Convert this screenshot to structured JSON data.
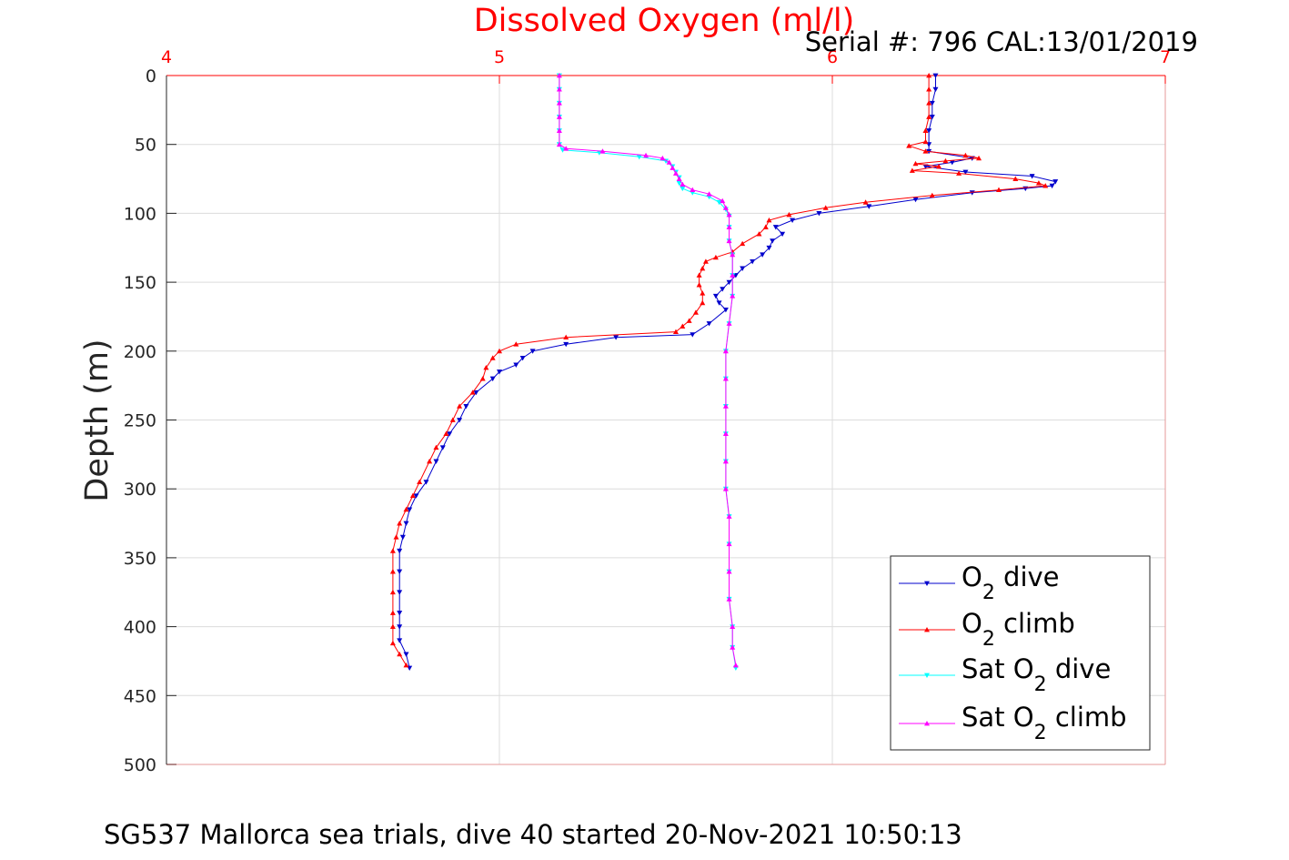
{
  "chart_data": {
    "type": "line",
    "title": "Dissolved Oxygen (ml/l)",
    "subtitle": "Serial #: 796  CAL:13/01/2019",
    "ylabel": "Depth (m)",
    "footer": "SG537 Mallorca sea trials, dive 40 started 20-Nov-2021 10:50:13",
    "xlim": [
      4,
      7
    ],
    "ylim": [
      0,
      500
    ],
    "y_reversed": true,
    "x_axis_position": "top",
    "x_ticks": [
      "4",
      "5",
      "6",
      "7"
    ],
    "y_ticks": [
      "0",
      "50",
      "100",
      "150",
      "200",
      "250",
      "300",
      "350",
      "400",
      "450",
      "500"
    ],
    "grid": true,
    "legend_position": "bottom-right",
    "colors": {
      "x_axis": "#ff0000",
      "title": "#ff0000"
    },
    "series": [
      {
        "name": "O2 dive",
        "name_main": "O",
        "name_sub": "2",
        "name_rest": " dive",
        "prefix": "",
        "color": "#0000cd",
        "marker": "triangle-down",
        "points": [
          [
            6.31,
            0
          ],
          [
            6.31,
            10
          ],
          [
            6.3,
            20
          ],
          [
            6.3,
            30
          ],
          [
            6.29,
            40
          ],
          [
            6.29,
            50
          ],
          [
            6.29,
            55
          ],
          [
            6.42,
            60
          ],
          [
            6.36,
            63
          ],
          [
            6.28,
            66
          ],
          [
            6.4,
            70
          ],
          [
            6.6,
            73
          ],
          [
            6.67,
            77
          ],
          [
            6.66,
            80
          ],
          [
            6.58,
            82
          ],
          [
            6.42,
            85
          ],
          [
            6.25,
            90
          ],
          [
            6.11,
            95
          ],
          [
            5.96,
            100
          ],
          [
            5.88,
            105
          ],
          [
            5.83,
            110
          ],
          [
            5.85,
            115
          ],
          [
            5.82,
            120
          ],
          [
            5.81,
            125
          ],
          [
            5.79,
            130
          ],
          [
            5.76,
            135
          ],
          [
            5.73,
            140
          ],
          [
            5.71,
            145
          ],
          [
            5.69,
            150
          ],
          [
            5.67,
            155
          ],
          [
            5.65,
            160
          ],
          [
            5.66,
            165
          ],
          [
            5.68,
            170
          ],
          [
            5.63,
            180
          ],
          [
            5.58,
            188
          ],
          [
            5.35,
            190
          ],
          [
            5.2,
            195
          ],
          [
            5.1,
            200
          ],
          [
            5.07,
            205
          ],
          [
            5.05,
            210
          ],
          [
            5.0,
            215
          ],
          [
            4.98,
            220
          ],
          [
            4.93,
            230
          ],
          [
            4.9,
            240
          ],
          [
            4.88,
            250
          ],
          [
            4.85,
            260
          ],
          [
            4.83,
            270
          ],
          [
            4.81,
            280
          ],
          [
            4.78,
            295
          ],
          [
            4.75,
            305
          ],
          [
            4.73,
            315
          ],
          [
            4.72,
            325
          ],
          [
            4.71,
            335
          ],
          [
            4.7,
            345
          ],
          [
            4.7,
            360
          ],
          [
            4.7,
            375
          ],
          [
            4.7,
            390
          ],
          [
            4.7,
            400
          ],
          [
            4.7,
            410
          ],
          [
            4.72,
            420
          ],
          [
            4.73,
            430
          ]
        ]
      },
      {
        "name": "O2 climb",
        "name_main": "O",
        "name_sub": "2",
        "name_rest": " climb",
        "prefix": "",
        "color": "#ff0000",
        "marker": "triangle-up",
        "points": [
          [
            6.29,
            0
          ],
          [
            6.29,
            10
          ],
          [
            6.29,
            20
          ],
          [
            6.29,
            30
          ],
          [
            6.28,
            40
          ],
          [
            6.28,
            48
          ],
          [
            6.23,
            51
          ],
          [
            6.28,
            55
          ],
          [
            6.4,
            58
          ],
          [
            6.44,
            60
          ],
          [
            6.34,
            62
          ],
          [
            6.25,
            64
          ],
          [
            6.32,
            66
          ],
          [
            6.24,
            69
          ],
          [
            6.38,
            71
          ],
          [
            6.55,
            75
          ],
          [
            6.62,
            78
          ],
          [
            6.64,
            80
          ],
          [
            6.5,
            83
          ],
          [
            6.3,
            87
          ],
          [
            6.1,
            92
          ],
          [
            5.98,
            96
          ],
          [
            5.87,
            101
          ],
          [
            5.81,
            105
          ],
          [
            5.8,
            110
          ],
          [
            5.78,
            115
          ],
          [
            5.73,
            122
          ],
          [
            5.7,
            128
          ],
          [
            5.65,
            132
          ],
          [
            5.62,
            135
          ],
          [
            5.61,
            140
          ],
          [
            5.6,
            145
          ],
          [
            5.6,
            152
          ],
          [
            5.61,
            158
          ],
          [
            5.61,
            165
          ],
          [
            5.59,
            172
          ],
          [
            5.57,
            178
          ],
          [
            5.55,
            182
          ],
          [
            5.53,
            186
          ],
          [
            5.2,
            190
          ],
          [
            5.05,
            195
          ],
          [
            5.0,
            200
          ],
          [
            4.98,
            205
          ],
          [
            4.96,
            212
          ],
          [
            4.95,
            220
          ],
          [
            4.92,
            230
          ],
          [
            4.88,
            240
          ],
          [
            4.86,
            250
          ],
          [
            4.84,
            260
          ],
          [
            4.81,
            270
          ],
          [
            4.79,
            280
          ],
          [
            4.76,
            295
          ],
          [
            4.74,
            305
          ],
          [
            4.72,
            315
          ],
          [
            4.7,
            325
          ],
          [
            4.69,
            335
          ],
          [
            4.68,
            345
          ],
          [
            4.68,
            360
          ],
          [
            4.68,
            375
          ],
          [
            4.68,
            390
          ],
          [
            4.68,
            400
          ],
          [
            4.68,
            412
          ],
          [
            4.7,
            420
          ],
          [
            4.72,
            428
          ]
        ]
      },
      {
        "name": "Sat O2 dive",
        "name_main": "O",
        "name_sub": "2",
        "name_rest": " dive",
        "prefix": "Sat ",
        "color": "#00ffff",
        "marker": "triangle-down",
        "points": [
          [
            5.18,
            0
          ],
          [
            5.18,
            10
          ],
          [
            5.18,
            20
          ],
          [
            5.18,
            30
          ],
          [
            5.18,
            40
          ],
          [
            5.18,
            50
          ],
          [
            5.19,
            54
          ],
          [
            5.3,
            56
          ],
          [
            5.42,
            59
          ],
          [
            5.5,
            62
          ],
          [
            5.52,
            66
          ],
          [
            5.53,
            70
          ],
          [
            5.54,
            74
          ],
          [
            5.54,
            78
          ],
          [
            5.55,
            82
          ],
          [
            5.58,
            85
          ],
          [
            5.63,
            88
          ],
          [
            5.66,
            92
          ],
          [
            5.68,
            97
          ],
          [
            5.69,
            102
          ],
          [
            5.69,
            110
          ],
          [
            5.69,
            120
          ],
          [
            5.7,
            130
          ],
          [
            5.7,
            145
          ],
          [
            5.7,
            160
          ],
          [
            5.69,
            180
          ],
          [
            5.68,
            200
          ],
          [
            5.68,
            220
          ],
          [
            5.68,
            240
          ],
          [
            5.68,
            260
          ],
          [
            5.68,
            280
          ],
          [
            5.68,
            300
          ],
          [
            5.69,
            320
          ],
          [
            5.69,
            340
          ],
          [
            5.69,
            360
          ],
          [
            5.69,
            380
          ],
          [
            5.7,
            400
          ],
          [
            5.7,
            415
          ],
          [
            5.71,
            430
          ]
        ]
      },
      {
        "name": "Sat O2 climb",
        "name_main": "O",
        "name_sub": "2",
        "name_rest": " climb",
        "prefix": "Sat ",
        "color": "#ff00ff",
        "marker": "triangle-up",
        "points": [
          [
            5.18,
            0
          ],
          [
            5.18,
            10
          ],
          [
            5.18,
            20
          ],
          [
            5.18,
            30
          ],
          [
            5.18,
            40
          ],
          [
            5.18,
            50
          ],
          [
            5.2,
            53
          ],
          [
            5.31,
            55
          ],
          [
            5.44,
            58
          ],
          [
            5.49,
            60
          ],
          [
            5.51,
            63
          ],
          [
            5.52,
            67
          ],
          [
            5.53,
            71
          ],
          [
            5.54,
            75
          ],
          [
            5.55,
            79
          ],
          [
            5.58,
            83
          ],
          [
            5.63,
            86
          ],
          [
            5.67,
            91
          ],
          [
            5.68,
            96
          ],
          [
            5.69,
            101
          ],
          [
            5.69,
            110
          ],
          [
            5.69,
            120
          ],
          [
            5.7,
            130
          ],
          [
            5.7,
            145
          ],
          [
            5.7,
            160
          ],
          [
            5.69,
            180
          ],
          [
            5.68,
            200
          ],
          [
            5.68,
            220
          ],
          [
            5.68,
            240
          ],
          [
            5.68,
            260
          ],
          [
            5.68,
            280
          ],
          [
            5.68,
            300
          ],
          [
            5.69,
            320
          ],
          [
            5.69,
            340
          ],
          [
            5.69,
            360
          ],
          [
            5.69,
            380
          ],
          [
            5.7,
            400
          ],
          [
            5.7,
            415
          ],
          [
            5.71,
            428
          ]
        ]
      }
    ]
  }
}
